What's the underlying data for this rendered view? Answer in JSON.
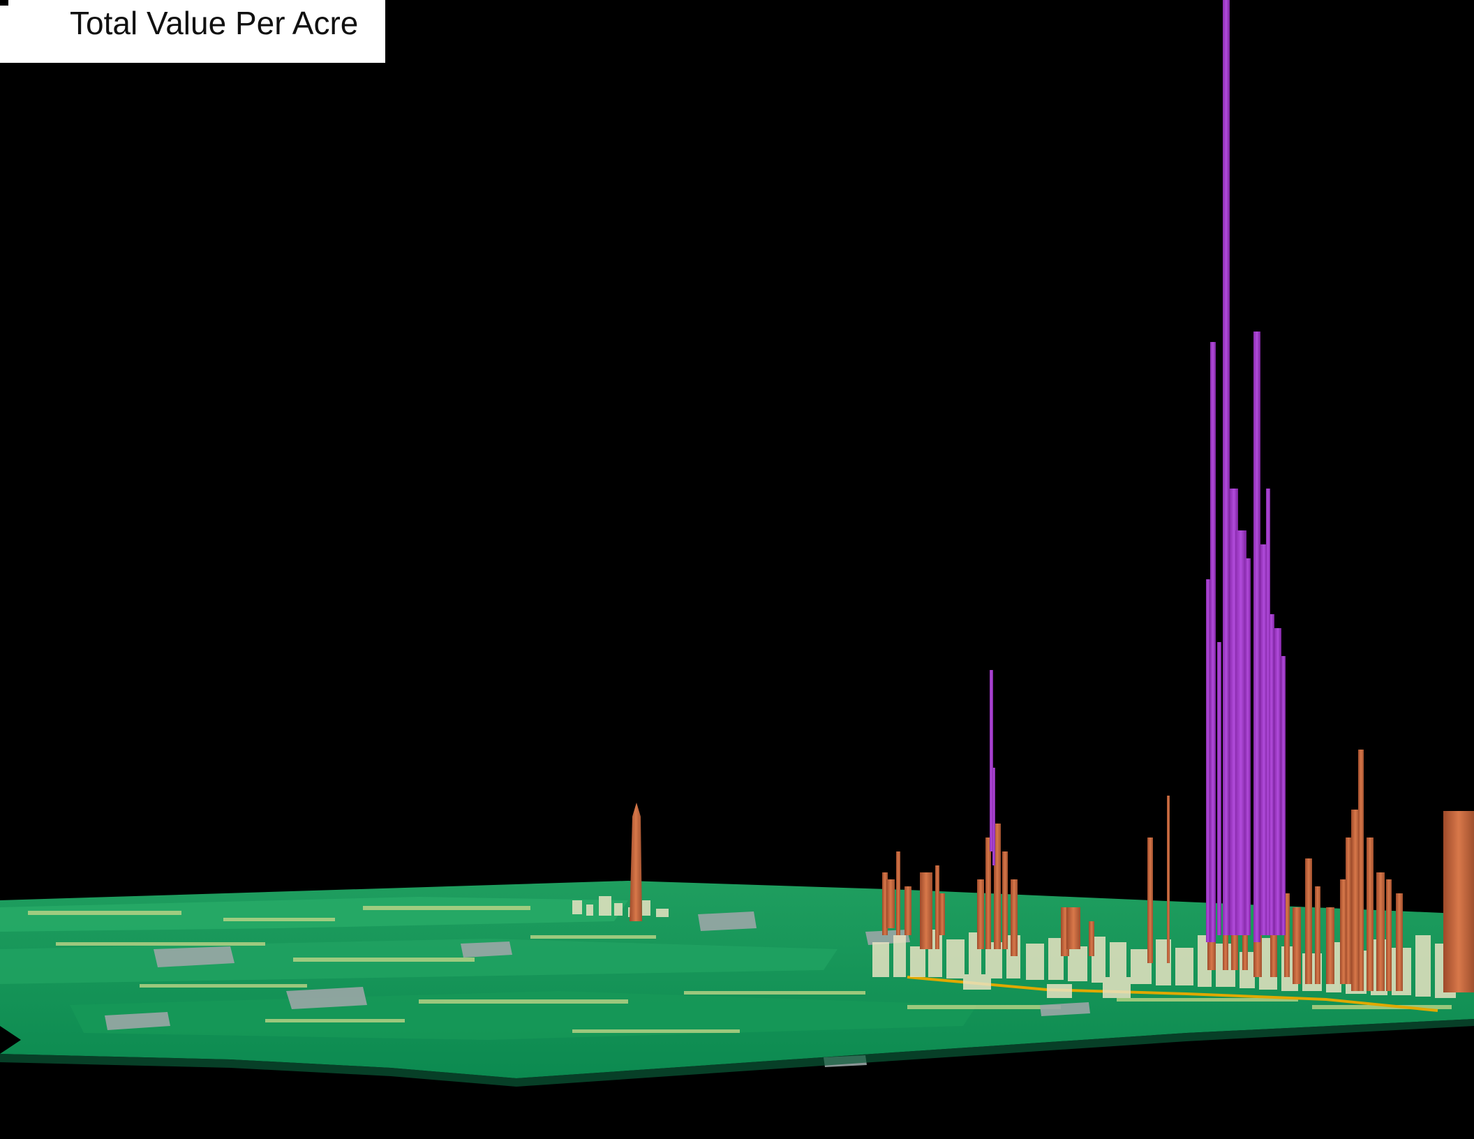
{
  "legend": {
    "title": "Total Value Per Acre"
  },
  "colors": {
    "background": "#000000",
    "ground_dark": "#0e8f55",
    "ground_mid": "#23a765",
    "ground_light": "#c8d98a",
    "pale_blocks": "#e8e3c2",
    "copper_spikes": "#c8643c",
    "purple_spikes": "#a63cc8",
    "grey_patches": "#9aa6a6",
    "gold_line": "#e0a800"
  }
}
